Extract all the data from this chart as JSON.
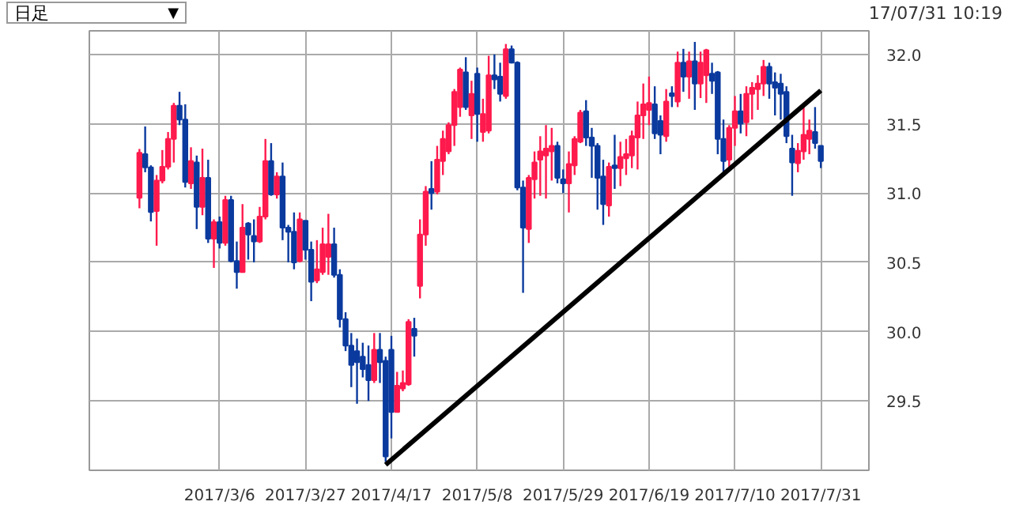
{
  "chart_data": {
    "type": "candlestick",
    "annotations": [
      "日足",
      "▼",
      "17/07/31 10:19"
    ],
    "categories": [
      null,
      null,
      null,
      null,
      null,
      null,
      null,
      null,
      null,
      null,
      null,
      null,
      null,
      null,
      "2017/3/6",
      null,
      null,
      null,
      null,
      null,
      null,
      null,
      null,
      null,
      null,
      null,
      null,
      null,
      null,
      "2017/3/27",
      null,
      null,
      null,
      null,
      null,
      null,
      null,
      null,
      null,
      null,
      null,
      null,
      null,
      null,
      "2017/4/17",
      null,
      null,
      null,
      null,
      null,
      null,
      null,
      null,
      null,
      null,
      null,
      null,
      null,
      null,
      "2017/5/8",
      null,
      null,
      null,
      null,
      null,
      null,
      null,
      null,
      null,
      null,
      null,
      null,
      null,
      null,
      "2017/5/29",
      null,
      null,
      null,
      null,
      null,
      null,
      null,
      null,
      null,
      null,
      null,
      null,
      null,
      null,
      "2017/6/19",
      null,
      null,
      null,
      null,
      null,
      null,
      null,
      null,
      null,
      null,
      null,
      null,
      null,
      null,
      "2017/7/10",
      null,
      null,
      null,
      null,
      null,
      null,
      null,
      null,
      null,
      null,
      null,
      null,
      null,
      null,
      "2017/7/31"
    ],
    "ylim": [
      29.0,
      32.17
    ],
    "yticks": [
      {
        "value": 29.5,
        "label": "29.5"
      },
      {
        "value": 30.0,
        "label": "30.0"
      },
      {
        "value": 30.5,
        "label": "30.5"
      },
      {
        "value": 31.0,
        "label": "31.0"
      },
      {
        "value": 31.5,
        "label": "31.5"
      },
      {
        "value": 32.0,
        "label": "32.0"
      }
    ],
    "grid": true,
    "ohlc": [
      [
        30.965,
        31.318,
        30.89,
        31.291
      ],
      [
        31.28,
        31.48,
        31.15,
        31.185
      ],
      [
        31.185,
        31.2,
        30.795,
        30.863
      ],
      [
        30.87,
        31.13,
        30.62,
        31.09
      ],
      [
        31.09,
        31.31,
        31.07,
        31.19
      ],
      [
        31.19,
        31.44,
        31.17,
        31.39
      ],
      [
        31.39,
        31.65,
        31.22,
        31.63
      ],
      [
        31.63,
        31.73,
        31.49,
        31.53
      ],
      [
        31.53,
        31.64,
        31.04,
        31.08
      ],
      [
        31.07,
        31.33,
        31.03,
        31.23
      ],
      [
        31.22,
        31.27,
        30.74,
        30.9
      ],
      [
        30.9,
        31.32,
        30.84,
        31.11
      ],
      [
        31.11,
        31.24,
        30.64,
        30.67
      ],
      [
        30.67,
        30.81,
        30.46,
        30.79
      ],
      [
        30.79,
        30.83,
        30.6,
        30.64
      ],
      [
        30.64,
        30.98,
        30.62,
        30.95
      ],
      [
        30.95,
        30.98,
        30.5,
        30.51
      ],
      [
        30.51,
        30.65,
        30.31,
        30.43
      ],
      [
        30.43,
        30.92,
        30.43,
        30.75
      ],
      [
        30.78,
        30.79,
        30.52,
        30.7
      ],
      [
        30.69,
        30.81,
        30.5,
        30.65
      ],
      [
        30.65,
        30.9,
        30.64,
        30.83
      ],
      [
        30.83,
        31.39,
        30.81,
        31.23
      ],
      [
        31.23,
        31.36,
        30.98,
        30.99
      ],
      [
        30.99,
        31.15,
        30.96,
        31.12
      ],
      [
        31.12,
        31.22,
        30.66,
        30.75
      ],
      [
        30.75,
        30.77,
        30.5,
        30.72
      ],
      [
        30.72,
        30.86,
        30.45,
        30.5
      ],
      [
        30.51,
        30.86,
        30.5,
        30.81
      ],
      [
        30.8,
        30.8,
        30.52,
        30.59
      ],
      [
        30.59,
        30.65,
        30.22,
        30.36
      ],
      [
        30.37,
        30.66,
        30.35,
        30.45
      ],
      [
        30.43,
        30.75,
        30.41,
        30.63
      ],
      [
        30.54,
        30.85,
        30.41,
        30.63
      ],
      [
        30.63,
        30.75,
        30.39,
        30.41
      ],
      [
        30.41,
        30.45,
        30.03,
        30.09
      ],
      [
        30.09,
        30.14,
        29.86,
        29.9
      ],
      [
        29.9,
        29.99,
        29.6,
        29.76
      ],
      [
        29.86,
        29.95,
        29.48,
        29.78
      ],
      [
        29.82,
        29.92,
        29.67,
        29.73
      ],
      [
        29.76,
        29.9,
        29.5,
        29.65
      ],
      [
        29.65,
        29.99,
        29.63,
        29.87
      ],
      [
        29.87,
        29.99,
        29.63,
        29.78
      ],
      [
        29.79,
        29.82,
        29.06,
        29.1
      ],
      [
        29.87,
        29.97,
        29.23,
        29.42
      ],
      [
        29.42,
        29.71,
        29.42,
        29.61
      ],
      [
        29.59,
        29.72,
        29.57,
        29.63
      ],
      [
        29.62,
        30.09,
        29.61,
        30.07
      ],
      [
        30.02,
        30.1,
        29.82,
        29.97
      ],
      [
        30.33,
        30.81,
        30.24,
        30.7
      ],
      [
        30.7,
        31.05,
        30.62,
        31.01
      ],
      [
        31.03,
        31.23,
        30.88,
        31.0
      ],
      [
        31.01,
        31.34,
        30.99,
        31.24
      ],
      [
        31.23,
        31.45,
        31.13,
        31.39
      ],
      [
        31.3,
        31.51,
        31.28,
        31.49
      ],
      [
        31.49,
        31.75,
        31.34,
        31.73
      ],
      [
        31.62,
        31.905,
        31.55,
        31.89
      ],
      [
        31.87,
        31.98,
        31.6,
        31.62
      ],
      [
        31.56,
        31.81,
        31.39,
        31.715
      ],
      [
        31.86,
        31.905,
        31.37,
        31.57
      ],
      [
        31.44,
        31.68,
        31.37,
        31.57
      ],
      [
        31.45,
        31.99,
        31.43,
        31.85
      ],
      [
        31.85,
        32.0,
        31.75,
        31.82
      ],
      [
        31.84,
        31.94,
        31.66,
        31.715
      ],
      [
        31.7,
        32.075,
        31.68,
        32.037
      ],
      [
        32.037,
        32.064,
        31.935,
        31.94
      ],
      [
        31.94,
        31.95,
        31.02,
        31.04
      ],
      [
        31.04,
        31.09,
        30.28,
        30.75
      ],
      [
        30.74,
        31.13,
        30.64,
        31.11
      ],
      [
        31.1,
        31.3,
        30.96,
        31.22
      ],
      [
        31.24,
        31.41,
        30.98,
        31.3
      ],
      [
        31.27,
        31.49,
        30.96,
        31.32
      ],
      [
        31.3,
        31.47,
        31.09,
        31.34
      ],
      [
        31.34,
        31.37,
        31.07,
        31.11
      ],
      [
        31.1,
        31.17,
        31.0,
        31.07
      ],
      [
        31.07,
        31.3,
        30.86,
        31.21
      ],
      [
        31.2,
        31.41,
        31.13,
        31.39
      ],
      [
        31.37,
        31.6,
        31.36,
        31.58
      ],
      [
        31.59,
        31.67,
        31.34,
        31.4
      ],
      [
        31.4,
        31.47,
        31.11,
        31.34
      ],
      [
        31.34,
        31.36,
        30.88,
        31.11
      ],
      [
        31.12,
        31.24,
        30.77,
        30.92
      ],
      [
        30.91,
        31.22,
        30.83,
        31.19
      ],
      [
        31.2,
        31.42,
        31.03,
        31.18
      ],
      [
        31.18,
        31.37,
        31.05,
        31.26
      ],
      [
        31.25,
        31.39,
        31.13,
        31.28
      ],
      [
        31.27,
        31.45,
        31.18,
        31.41
      ],
      [
        31.4,
        31.66,
        31.17,
        31.56
      ],
      [
        31.56,
        31.79,
        31.39,
        31.64
      ],
      [
        31.6,
        31.84,
        31.49,
        31.65
      ],
      [
        31.64,
        31.77,
        31.39,
        31.43
      ],
      [
        31.52,
        31.56,
        31.28,
        31.42
      ],
      [
        31.41,
        31.75,
        31.37,
        31.66
      ],
      [
        31.72,
        31.77,
        31.62,
        31.7
      ],
      [
        31.66,
        32.02,
        31.62,
        31.94
      ],
      [
        31.94,
        32.04,
        31.73,
        31.84
      ],
      [
        31.84,
        32.02,
        31.68,
        31.95
      ],
      [
        31.95,
        32.09,
        31.6,
        31.79
      ],
      [
        31.79,
        32.02,
        31.685,
        31.94
      ],
      [
        31.85,
        32.04,
        31.65,
        32.03
      ],
      [
        31.86,
        31.94,
        31.715,
        31.81
      ],
      [
        31.87,
        31.88,
        31.28,
        31.39
      ],
      [
        31.39,
        31.53,
        31.15,
        31.23
      ],
      [
        31.24,
        31.49,
        31.18,
        31.47
      ],
      [
        31.47,
        31.7,
        31.34,
        31.59
      ],
      [
        31.59,
        31.715,
        31.43,
        31.5
      ],
      [
        31.51,
        31.77,
        31.41,
        31.715
      ],
      [
        31.715,
        31.8,
        31.53,
        31.76
      ],
      [
        31.75,
        31.85,
        31.6,
        31.79
      ],
      [
        31.79,
        31.96,
        31.7,
        31.91
      ],
      [
        31.91,
        31.94,
        31.68,
        31.79
      ],
      [
        31.8,
        31.87,
        31.56,
        31.76
      ],
      [
        31.79,
        31.86,
        31.53,
        31.715
      ],
      [
        31.73,
        31.77,
        31.36,
        31.41
      ],
      [
        31.32,
        31.42,
        30.98,
        31.22
      ],
      [
        31.215,
        31.36,
        31.15,
        31.305
      ],
      [
        31.3,
        31.62,
        31.24,
        31.42
      ],
      [
        31.39,
        31.53,
        31.28,
        31.45
      ],
      [
        31.44,
        31.62,
        31.32,
        31.36
      ],
      [
        31.34,
        31.34,
        31.18,
        31.23
      ]
    ],
    "colors": [
      "#ff1a4d",
      "#0b3a9e",
      "#0b3a9e",
      "#ff1a4d",
      "#ff1a4d",
      "#ff1a4d",
      "#ff1a4d",
      "#0b3a9e",
      "#0b3a9e",
      "#ff1a4d",
      "#0b3a9e",
      "#ff1a4d",
      "#0b3a9e",
      "#ff1a4d",
      "#0b3a9e",
      "#ff1a4d",
      "#0b3a9e",
      "#0b3a9e",
      "#ff1a4d",
      "#0b3a9e",
      "#0b3a9e",
      "#ff1a4d",
      "#ff1a4d",
      "#0b3a9e",
      "#ff1a4d",
      "#0b3a9e",
      "#0b3a9e",
      "#0b3a9e",
      "#ff1a4d",
      "#0b3a9e",
      "#0b3a9e",
      "#ff1a4d",
      "#ff1a4d",
      "#ff1a4d",
      "#0b3a9e",
      "#0b3a9e",
      "#0b3a9e",
      "#0b3a9e",
      "#0b3a9e",
      "#0b3a9e",
      "#0b3a9e",
      "#ff1a4d",
      "#0b3a9e",
      "#0b3a9e",
      "#0b3a9e",
      "#ff1a4d",
      "#ff1a4d",
      "#ff1a4d",
      "#0b3a9e",
      "#ff1a4d",
      "#ff1a4d",
      "#0b3a9e",
      "#ff1a4d",
      "#ff1a4d",
      "#ff1a4d",
      "#ff1a4d",
      "#ff1a4d",
      "#0b3a9e",
      "#ff1a4d",
      "#0b3a9e",
      "#ff1a4d",
      "#ff1a4d",
      "#0b3a9e",
      "#0b3a9e",
      "#ff1a4d",
      "#0b3a9e",
      "#0b3a9e",
      "#0b3a9e",
      "#ff1a4d",
      "#ff1a4d",
      "#ff1a4d",
      "#ff1a4d",
      "#ff1a4d",
      "#0b3a9e",
      "#0b3a9e",
      "#ff1a4d",
      "#ff1a4d",
      "#ff1a4d",
      "#0b3a9e",
      "#0b3a9e",
      "#0b3a9e",
      "#0b3a9e",
      "#ff1a4d",
      "#0b3a9e",
      "#ff1a4d",
      "#ff1a4d",
      "#ff1a4d",
      "#ff1a4d",
      "#ff1a4d",
      "#ff1a4d",
      "#0b3a9e",
      "#0b3a9e",
      "#ff1a4d",
      "#0b3a9e",
      "#ff1a4d",
      "#0b3a9e",
      "#ff1a4d",
      "#0b3a9e",
      "#ff1a4d",
      "#ff1a4d",
      "#0b3a9e",
      "#0b3a9e",
      "#0b3a9e",
      "#ff1a4d",
      "#ff1a4d",
      "#0b3a9e",
      "#ff1a4d",
      "#ff1a4d",
      "#ff1a4d",
      "#ff1a4d",
      "#0b3a9e",
      "#0b3a9e",
      "#0b3a9e",
      "#0b3a9e",
      "#0b3a9e",
      "#ff1a4d",
      "#ff1a4d",
      "#ff1a4d",
      "#0b3a9e",
      "#0b3a9e"
    ],
    "series": [
      {
        "type": "line",
        "color": "#000000",
        "values": [
          null,
          null,
          null,
          null,
          null,
          null,
          null,
          null,
          null,
          null,
          null,
          null,
          null,
          null,
          null,
          null,
          null,
          null,
          null,
          null,
          null,
          null,
          null,
          null,
          null,
          null,
          null,
          null,
          null,
          null,
          null,
          null,
          null,
          null,
          null,
          null,
          null,
          null,
          null,
          null,
          null,
          null,
          null,
          29.04,
          null,
          null,
          null,
          null,
          null,
          null,
          null,
          null,
          null,
          null,
          null,
          null,
          null,
          null,
          null,
          null,
          null,
          null,
          null,
          null,
          null,
          null,
          null,
          null,
          null,
          null,
          null,
          null,
          null,
          null,
          null,
          null,
          null,
          null,
          null,
          null,
          null,
          null,
          null,
          null,
          null,
          null,
          null,
          null,
          null,
          null,
          null,
          null,
          null,
          null,
          null,
          null,
          null,
          null,
          null,
          null,
          null,
          null,
          null,
          null,
          null,
          null,
          null,
          null,
          null,
          null,
          null,
          null,
          null,
          null,
          null,
          null,
          null,
          null,
          null,
          31.74
        ]
      }
    ]
  }
}
